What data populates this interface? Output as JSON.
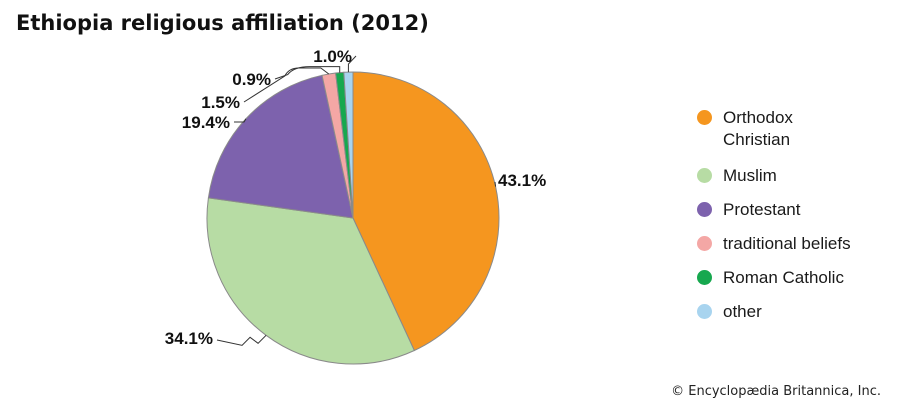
{
  "title": "Ethiopia religious affiliation (2012)",
  "credit": "© Encyclopædia Britannica, Inc.",
  "chart_data": {
    "type": "pie",
    "title": "Ethiopia religious affiliation (2012)",
    "slices": [
      {
        "label": "Orthodox Christian",
        "legend_lines": [
          "Orthodox",
          "Christian"
        ],
        "value": 43.1,
        "display": "43.1%",
        "color": "#f5961f"
      },
      {
        "label": "Muslim",
        "legend_lines": [
          "Muslim"
        ],
        "value": 34.1,
        "display": "34.1%",
        "color": "#b7dca4"
      },
      {
        "label": "Protestant",
        "legend_lines": [
          "Protestant"
        ],
        "value": 19.4,
        "display": "19.4%",
        "color": "#7d62ad"
      },
      {
        "label": "traditional beliefs",
        "legend_lines": [
          "traditional beliefs"
        ],
        "value": 1.5,
        "display": "1.5%",
        "color": "#f4a7a5"
      },
      {
        "label": "Roman Catholic",
        "legend_lines": [
          "Roman Catholic"
        ],
        "value": 0.9,
        "display": "0.9%",
        "color": "#17a84f"
      },
      {
        "label": "other",
        "legend_lines": [
          "other"
        ],
        "value": 1.0,
        "display": "1.0%",
        "color": "#a8d4ef"
      }
    ],
    "legend_position": "right"
  }
}
